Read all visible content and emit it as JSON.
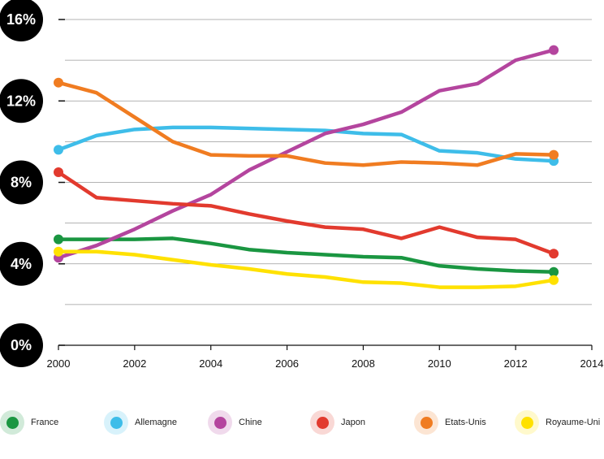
{
  "chart_data": {
    "type": "line",
    "x": [
      2000,
      2001,
      2002,
      2003,
      2004,
      2005,
      2006,
      2007,
      2008,
      2009,
      2010,
      2011,
      2012,
      2013
    ],
    "xticks": [
      "2000",
      "2002",
      "2004",
      "2006",
      "2008",
      "2010",
      "2012",
      "2014"
    ],
    "xlim": [
      2000,
      2014
    ],
    "ylim": [
      0,
      16
    ],
    "yticks": [
      "0%",
      "4%",
      "8%",
      "12%",
      "16%"
    ],
    "grid": true,
    "legend_position": "bottom",
    "series": [
      {
        "name": "France",
        "color": "#1a9641",
        "values": [
          5.2,
          5.2,
          5.2,
          5.25,
          5.0,
          4.7,
          4.55,
          4.45,
          4.35,
          4.3,
          3.9,
          3.75,
          3.65,
          3.6
        ]
      },
      {
        "name": "Allemagne",
        "color": "#3ebde9",
        "values": [
          9.6,
          10.3,
          10.6,
          10.7,
          10.7,
          10.65,
          10.6,
          10.55,
          10.4,
          10.35,
          9.55,
          9.45,
          9.15,
          9.05
        ]
      },
      {
        "name": "Chine",
        "color": "#b4459e",
        "values": [
          4.3,
          4.9,
          5.7,
          6.6,
          7.4,
          8.6,
          9.5,
          10.4,
          10.85,
          11.45,
          12.5,
          12.85,
          14.0,
          14.5
        ]
      },
      {
        "name": "Japon",
        "color": "#e23a2e",
        "values": [
          8.5,
          7.25,
          7.1,
          6.95,
          6.85,
          6.45,
          6.1,
          5.8,
          5.7,
          5.25,
          5.8,
          5.3,
          5.2,
          4.5
        ]
      },
      {
        "name": "Etats-Unis",
        "color": "#f07c21",
        "values": [
          12.9,
          12.4,
          11.2,
          10.0,
          9.35,
          9.3,
          9.3,
          8.95,
          8.85,
          9.0,
          8.95,
          8.85,
          9.4,
          9.35
        ]
      },
      {
        "name": "Royaume-Uni",
        "color": "#ffe100",
        "values": [
          4.6,
          4.6,
          4.45,
          4.2,
          3.95,
          3.75,
          3.5,
          3.35,
          3.1,
          3.05,
          2.85,
          2.85,
          2.9,
          3.2
        ]
      }
    ]
  }
}
